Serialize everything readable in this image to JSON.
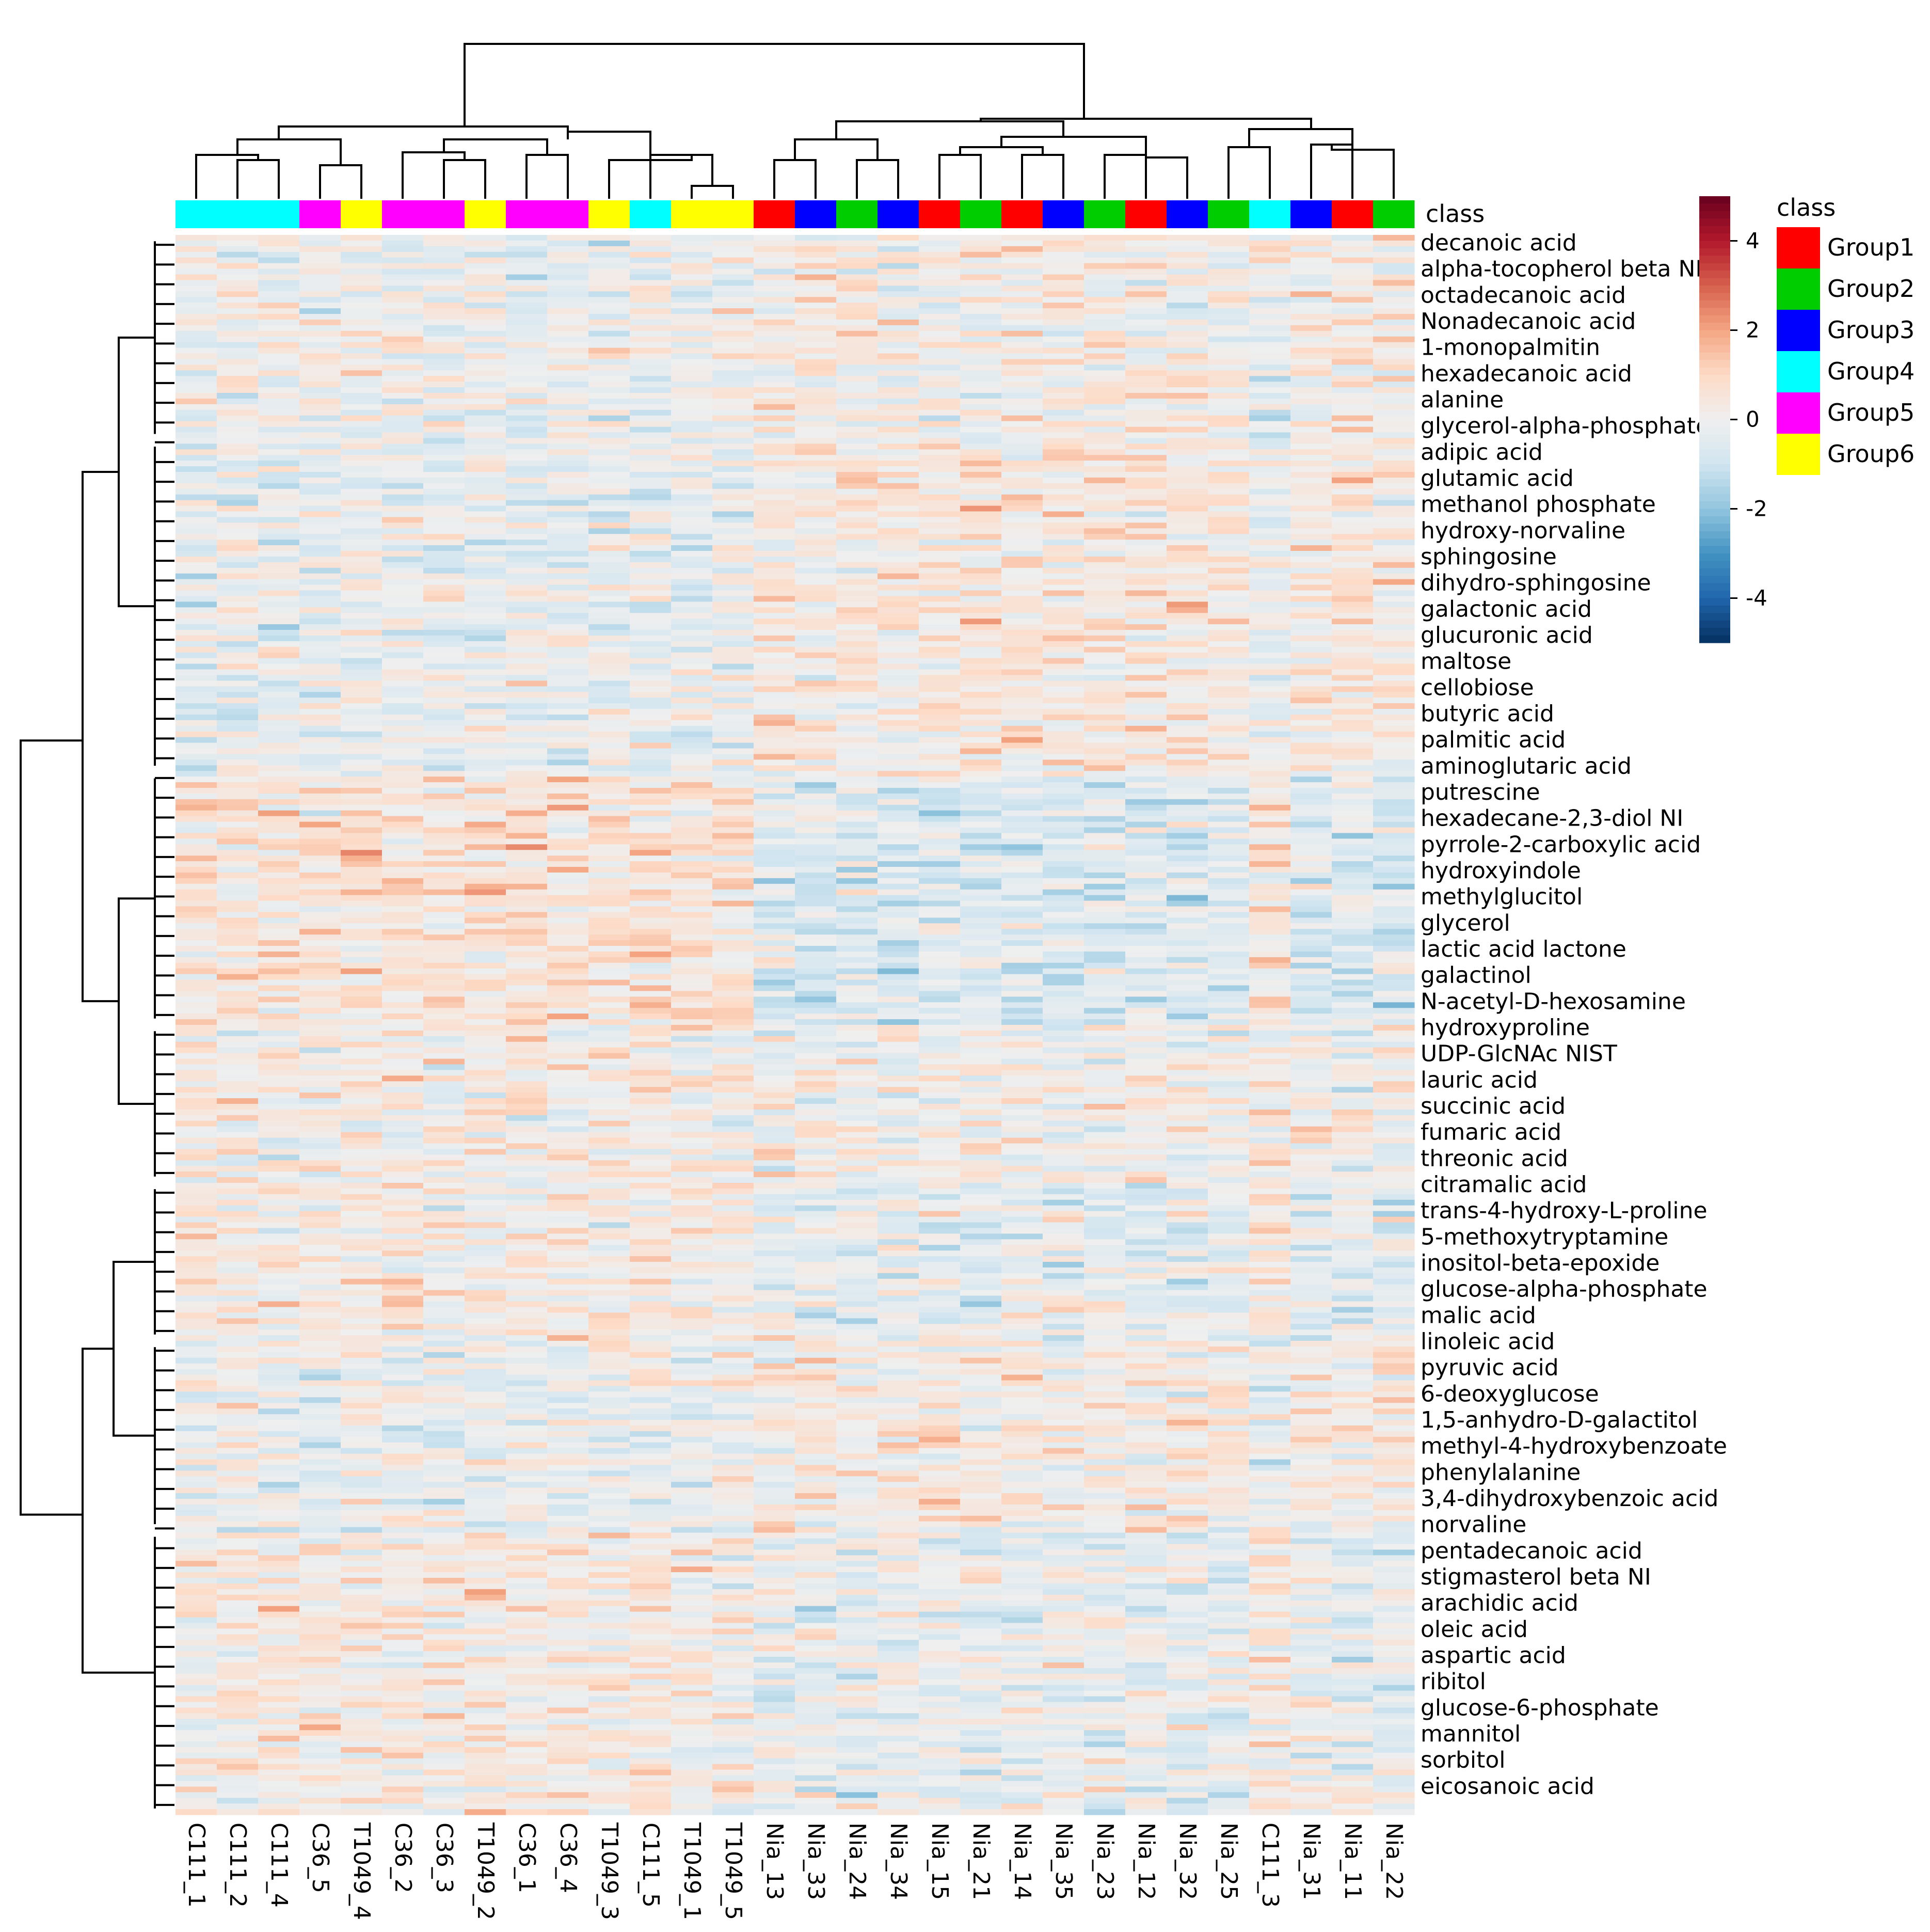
{
  "chart_data": {
    "type": "heatmap",
    "columns": [
      "C111_1",
      "C111_2",
      "C111_4",
      "C36_5",
      "T1049_4",
      "C36_2",
      "C36_3",
      "T1049_2",
      "C36_1",
      "C36_4",
      "T1049_3",
      "C111_5",
      "T1049_1",
      "T1049_5",
      "Nia_13",
      "Nia_33",
      "Nia_24",
      "Nia_34",
      "Nia_15",
      "Nia_21",
      "Nia_14",
      "Nia_35",
      "Nia_23",
      "Nia_12",
      "Nia_32",
      "Nia_25",
      "C111_3",
      "Nia_31",
      "Nia_11",
      "Nia_22"
    ],
    "column_class": [
      "Group4",
      "Group4",
      "Group4",
      "Group5",
      "Group6",
      "Group5",
      "Group5",
      "Group6",
      "Group5",
      "Group5",
      "Group6",
      "Group4",
      "Group6",
      "Group6",
      "Group1",
      "Group3",
      "Group2",
      "Group3",
      "Group1",
      "Group2",
      "Group1",
      "Group3",
      "Group2",
      "Group1",
      "Group3",
      "Group2",
      "Group4",
      "Group3",
      "Group1",
      "Group2"
    ],
    "annotation_label": "class",
    "legend": {
      "title": "class",
      "groups": [
        {
          "name": "Group1",
          "color": "#FF0000"
        },
        {
          "name": "Group2",
          "color": "#00CD00"
        },
        {
          "name": "Group3",
          "color": "#0000FF"
        },
        {
          "name": "Group4",
          "color": "#00FFFF"
        },
        {
          "name": "Group5",
          "color": "#FF00FF"
        },
        {
          "name": "Group6",
          "color": "#FFFF00"
        }
      ]
    },
    "color_scale": {
      "min": -5,
      "max": 5,
      "ticks": [
        "4",
        "2",
        "0",
        "-2",
        "-4"
      ],
      "tick_values": [
        4,
        2,
        0,
        -2,
        -4
      ],
      "stops": [
        "#053061",
        "#2166AC",
        "#4393C3",
        "#92C5DE",
        "#D1E5F0",
        "#EFEFEF",
        "#FDDBC7",
        "#F4A582",
        "#D6604D",
        "#B2182B",
        "#67001F"
      ]
    },
    "row_labels": [
      "decanoic acid",
      "alpha-tocopherol beta NI",
      "octadecanoic acid",
      "Nonadecanoic acid",
      "1-monopalmitin",
      "hexadecanoic acid",
      "alanine",
      "glycerol-alpha-phosphate",
      "adipic acid",
      "glutamic acid",
      "methanol phosphate",
      "hydroxy-norvaline",
      "sphingosine",
      "dihydro-sphingosine",
      "galactonic acid",
      "glucuronic acid",
      "maltose",
      "cellobiose",
      "butyric acid",
      "palmitic acid",
      "aminoglutaric acid",
      "putrescine",
      "hexadecane-2,3-diol NI",
      "pyrrole-2-carboxylic acid",
      "hydroxyindole",
      "methylglucitol",
      "glycerol",
      "lactic acid lactone",
      "galactinol",
      "N-acetyl-D-hexosamine",
      "hydroxyproline",
      "UDP-GlcNAc NIST",
      "lauric acid",
      "succinic acid",
      "fumaric acid",
      "threonic acid",
      "citramalic acid",
      "trans-4-hydroxy-L-proline",
      "5-methoxytryptamine",
      "inositol-beta-epoxide",
      "glucose-alpha-phosphate",
      "malic acid",
      "linoleic acid",
      "pyruvic acid",
      "6-deoxyglucose",
      "1,5-anhydro-D-galactitol",
      "methyl-4-hydroxybenzoate",
      "phenylalanine",
      "3,4-dihydroxybenzoic acid",
      "norvaline",
      "pentadecanoic acid",
      "stigmasterol beta NI",
      "arachidic acid",
      "oleic acid",
      "aspartic acid",
      "ribitol",
      "glucose-6-phosphate",
      "mannitol",
      "sorbitol",
      "eicosanoic acid"
    ],
    "matrix_note": "row values are z-scores; dense ~280-row matrix rendered procedurally with block pattern per cluster",
    "clusters_top": [
      "C111/C36/T1049 samples",
      "Nia samples"
    ]
  }
}
